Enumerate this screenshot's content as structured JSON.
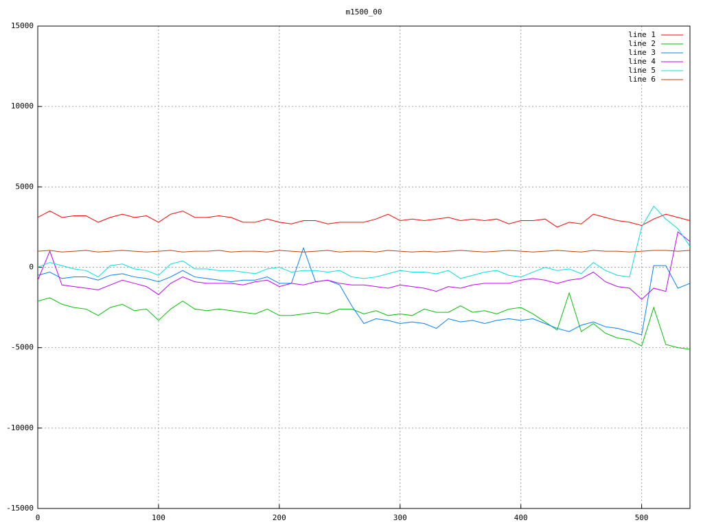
{
  "chart_data": {
    "type": "line",
    "title": "m1500_00",
    "x": [
      0,
      10,
      20,
      30,
      40,
      50,
      60,
      70,
      80,
      90,
      100,
      110,
      120,
      130,
      140,
      150,
      160,
      170,
      180,
      190,
      200,
      210,
      220,
      230,
      240,
      250,
      260,
      270,
      280,
      290,
      300,
      310,
      320,
      330,
      340,
      350,
      360,
      370,
      380,
      390,
      400,
      410,
      420,
      430,
      440,
      450,
      460,
      470,
      480,
      490,
      500,
      510,
      520,
      530,
      540
    ],
    "xlim": [
      0,
      540
    ],
    "xticks": [
      0,
      100,
      200,
      300,
      400,
      500
    ],
    "ylim": [
      -15000,
      15000
    ],
    "yticks": [
      -15000,
      -10000,
      -5000,
      0,
      5000,
      10000,
      15000
    ],
    "grid": true,
    "legend": "top-right",
    "series": [
      {
        "name": "line 1",
        "color": "#ff0000",
        "values": [
          3100,
          3500,
          3100,
          3200,
          3200,
          2800,
          3100,
          3300,
          3100,
          3200,
          2800,
          3300,
          3500,
          3100,
          3100,
          3200,
          3100,
          2800,
          2800,
          3000,
          2800,
          2700,
          2900,
          2900,
          2700,
          2800,
          2800,
          2800,
          3000,
          3300,
          2900,
          3000,
          2900,
          3000,
          3100,
          2900,
          3000,
          2900,
          3000,
          2700,
          2900,
          2900,
          3000,
          2500,
          2800,
          2700,
          3300,
          3100,
          2900,
          2800,
          2600,
          3000,
          3300,
          3100,
          2900
        ]
      },
      {
        "name": "line 2",
        "color": "#00c000",
        "values": [
          -2100,
          -1900,
          -2300,
          -2500,
          -2600,
          -3000,
          -2500,
          -2300,
          -2700,
          -2600,
          -3300,
          -2600,
          -2100,
          -2600,
          -2700,
          -2600,
          -2700,
          -2800,
          -2900,
          -2600,
          -3000,
          -3000,
          -2900,
          -2800,
          -2900,
          -2600,
          -2600,
          -2900,
          -2700,
          -3000,
          -2900,
          -3000,
          -2600,
          -2800,
          -2800,
          -2400,
          -2800,
          -2700,
          -2900,
          -2600,
          -2500,
          -2900,
          -3400,
          -3900,
          -1600,
          -4000,
          -3500,
          -4100,
          -4400,
          -4500,
          -4900,
          -2500,
          -4800,
          -5000,
          -5100
        ]
      },
      {
        "name": "line 3",
        "color": "#0080ff",
        "values": [
          -500,
          -300,
          -700,
          -600,
          -600,
          -800,
          -500,
          -400,
          -600,
          -700,
          -900,
          -600,
          -200,
          -600,
          -700,
          -800,
          -900,
          -800,
          -800,
          -600,
          -1000,
          -1000,
          1200,
          -900,
          -800,
          -1100,
          -2400,
          -3500,
          -3200,
          -3300,
          -3500,
          -3400,
          -3500,
          -3800,
          -3200,
          -3400,
          -3300,
          -3500,
          -3300,
          -3200,
          -3300,
          -3200,
          -3500,
          -3800,
          -4000,
          -3600,
          -3400,
          -3700,
          -3800,
          -4000,
          -4200,
          100,
          100,
          -1300,
          -1000
        ]
      },
      {
        "name": "line 4",
        "color": "#c000ff",
        "values": [
          -800,
          1000,
          -1100,
          -1200,
          -1300,
          -1400,
          -1100,
          -800,
          -1000,
          -1200,
          -1700,
          -1000,
          -600,
          -900,
          -1000,
          -1000,
          -1000,
          -1100,
          -900,
          -800,
          -1200,
          -1000,
          -1100,
          -900,
          -800,
          -1000,
          -1100,
          -1100,
          -1200,
          -1300,
          -1100,
          -1200,
          -1300,
          -1500,
          -1200,
          -1300,
          -1100,
          -1000,
          -1000,
          -1000,
          -800,
          -700,
          -800,
          -1000,
          -800,
          -700,
          -300,
          -900,
          -1200,
          -1300,
          -2000,
          -1300,
          -1500,
          2200,
          1600
        ]
      },
      {
        "name": "line 5",
        "color": "#00e0e0",
        "values": [
          0,
          300,
          100,
          -100,
          -200,
          -600,
          100,
          200,
          -100,
          -200,
          -500,
          200,
          400,
          -100,
          -100,
          -200,
          -200,
          -300,
          -400,
          -100,
          0,
          -300,
          -200,
          -200,
          -300,
          -200,
          -600,
          -700,
          -600,
          -400,
          -200,
          -300,
          -300,
          -400,
          -200,
          -700,
          -500,
          -300,
          -200,
          -500,
          -600,
          -300,
          0,
          -200,
          -100,
          -400,
          300,
          -200,
          -500,
          -600,
          2500,
          3800,
          3000,
          2400,
          1300
        ]
      },
      {
        "name": "line 6",
        "color": "#c04000",
        "values": [
          1000,
          1050,
          950,
          1000,
          1050,
          950,
          1000,
          1050,
          1000,
          950,
          1000,
          1050,
          950,
          1000,
          1000,
          1050,
          950,
          1000,
          1000,
          950,
          1050,
          1000,
          950,
          1000,
          1050,
          950,
          1000,
          1000,
          950,
          1050,
          1000,
          950,
          1000,
          950,
          1000,
          1050,
          1000,
          950,
          1000,
          1050,
          1000,
          950,
          1000,
          1050,
          1000,
          950,
          1050,
          1000,
          1000,
          950,
          1000,
          1050,
          1050,
          1000,
          1050
        ]
      }
    ]
  }
}
